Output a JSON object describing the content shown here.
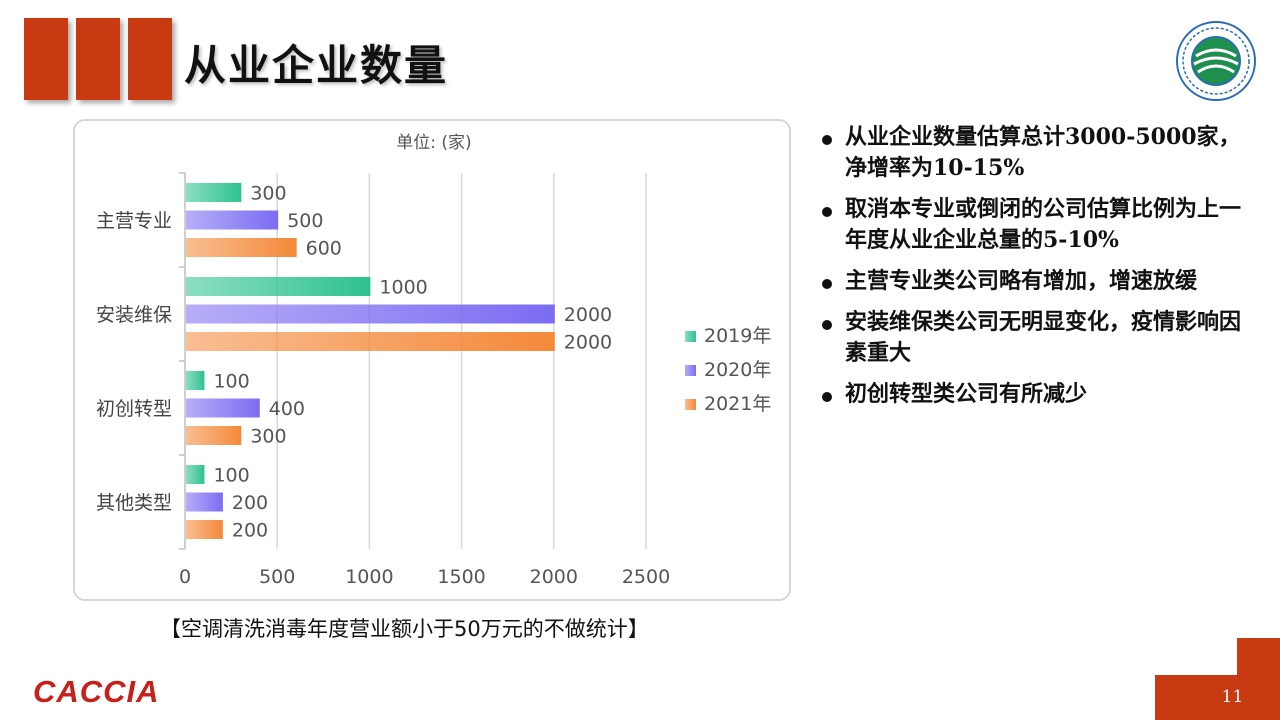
{
  "header": {
    "title": "从业企业数量"
  },
  "chart_data": {
    "type": "bar",
    "orientation": "horizontal",
    "unit_label": "单位:   (家)",
    "categories": [
      "主营专业",
      "安装维保",
      "初创转型",
      "其他类型"
    ],
    "series": [
      {
        "name": "2019年",
        "values": [
          300,
          1000,
          100,
          100
        ],
        "color": "#2ec28f"
      },
      {
        "name": "2020年",
        "values": [
          500,
          2000,
          400,
          200
        ],
        "color": "#7b6cf2"
      },
      {
        "name": "2021年",
        "values": [
          600,
          2000,
          300,
          200
        ],
        "color": "#f4893a"
      }
    ],
    "xlim": [
      0,
      2500
    ],
    "xticks": [
      "0",
      "500",
      "1000",
      "1500",
      "2000",
      "2500"
    ],
    "grid": true,
    "legend_position": "right"
  },
  "caption": "【空调清洗消毒年度营业额小于50万元的不做统计】",
  "bullets": [
    "从业企业数量估算总计3000-5000家，净增率为10-15%",
    "取消本专业或倒闭的公司估算比例为上一年度从业企业总量的5-10%",
    "主营专业类公司略有增加，增速放缓",
    "安装维保类公司无明显变化，疫情影响因素重大",
    "初创转型类公司有所减少"
  ],
  "footer": {
    "brand": "CACCIA",
    "page_number": "11"
  },
  "logo": {
    "icon": "association-seal-icon"
  }
}
